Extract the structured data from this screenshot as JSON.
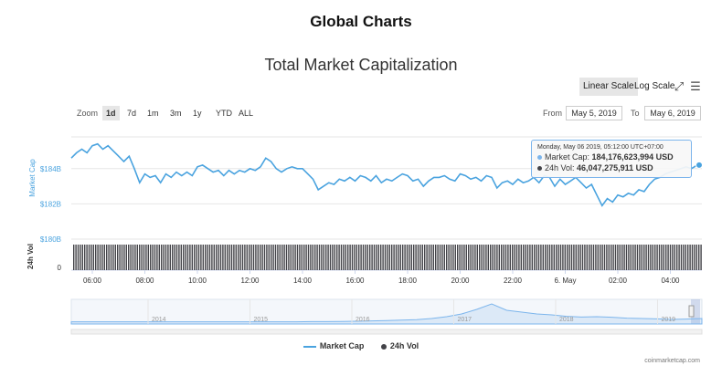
{
  "page_title": "Global Charts",
  "toolbar": {
    "linear_scale": "Linear Scale",
    "log_scale": "Log Scale",
    "zoom_label": "Zoom",
    "zoom_options": [
      "1d",
      "7d",
      "1m",
      "3m",
      "1y",
      "YTD",
      "ALL"
    ],
    "zoom_selected": "1d",
    "from_label": "From",
    "from_value": "May 5, 2019",
    "to_label": "To",
    "to_value": "May 6, 2019"
  },
  "tooltip": {
    "date": "Monday, May 06 2019, 05:12:00 UTC+07:00",
    "market_cap_label": "Market Cap:",
    "market_cap_value": "184,176,623,994 USD",
    "vol_label": "24h Vol:",
    "vol_value": "46,047,275,911 USD"
  },
  "credit": "coinmarketcap.com",
  "chart_data": {
    "type": "line",
    "title": "Total Market Capitalization",
    "ylabel": "Market Cap",
    "y_ticks": [
      "$180B",
      "$182B",
      "$184B"
    ],
    "ylim": [
      180,
      185.8
    ],
    "vol_ylabel": "24h Vol",
    "vol_ticks": [
      "0"
    ],
    "x_ticks": [
      "06:00",
      "08:00",
      "10:00",
      "12:00",
      "14:00",
      "16:00",
      "18:00",
      "20:00",
      "22:00",
      "6. May",
      "02:00",
      "04:00"
    ],
    "x_tick_hours": [
      6,
      8,
      10,
      12,
      14,
      16,
      18,
      20,
      22,
      24,
      26,
      28
    ],
    "x_range_hours": [
      5.2,
      29.2
    ],
    "series": [
      {
        "name": "Market Cap",
        "color": "#4aa3df",
        "x_hours": [
          5.2,
          5.4,
          5.6,
          5.8,
          6.0,
          6.2,
          6.4,
          6.6,
          6.8,
          7.0,
          7.2,
          7.4,
          7.6,
          7.8,
          8.0,
          8.2,
          8.4,
          8.6,
          8.8,
          9.0,
          9.2,
          9.4,
          9.6,
          9.8,
          10.0,
          10.2,
          10.4,
          10.6,
          10.8,
          11.0,
          11.2,
          11.4,
          11.6,
          11.8,
          12.0,
          12.2,
          12.4,
          12.6,
          12.8,
          13.0,
          13.2,
          13.4,
          13.6,
          13.8,
          14.0,
          14.2,
          14.4,
          14.6,
          14.8,
          15.0,
          15.2,
          15.4,
          15.6,
          15.8,
          16.0,
          16.2,
          16.4,
          16.6,
          16.8,
          17.0,
          17.2,
          17.4,
          17.6,
          17.8,
          18.0,
          18.2,
          18.4,
          18.6,
          18.8,
          19.0,
          19.2,
          19.4,
          19.6,
          19.8,
          20.0,
          20.2,
          20.4,
          20.6,
          20.8,
          21.0,
          21.2,
          21.4,
          21.6,
          21.8,
          22.0,
          22.2,
          22.4,
          22.6,
          22.8,
          23.0,
          23.2,
          23.4,
          23.6,
          23.8,
          24.0,
          24.2,
          24.4,
          24.6,
          24.8,
          25.0,
          25.2,
          25.4,
          25.6,
          25.8,
          26.0,
          26.2,
          26.4,
          26.6,
          26.8,
          27.0,
          27.2,
          27.4,
          27.6,
          27.8,
          28.0,
          28.2,
          28.4,
          28.6,
          28.8,
          29.0,
          29.2
        ],
        "values": [
          184.6,
          184.9,
          185.1,
          184.9,
          185.3,
          185.4,
          185.1,
          185.3,
          185.0,
          184.7,
          184.4,
          184.7,
          184.0,
          183.2,
          183.7,
          183.5,
          183.6,
          183.2,
          183.7,
          183.5,
          183.8,
          183.6,
          183.8,
          183.6,
          184.1,
          184.2,
          184.0,
          183.8,
          183.9,
          183.6,
          183.9,
          183.7,
          183.9,
          183.8,
          184.0,
          183.9,
          184.1,
          184.6,
          184.4,
          184.0,
          183.8,
          184.0,
          184.1,
          184.0,
          184.0,
          183.7,
          183.4,
          182.8,
          183.0,
          183.2,
          183.1,
          183.4,
          183.3,
          183.5,
          183.3,
          183.6,
          183.5,
          183.3,
          183.6,
          183.2,
          183.4,
          183.3,
          183.5,
          183.7,
          183.6,
          183.3,
          183.4,
          183.0,
          183.3,
          183.5,
          183.5,
          183.6,
          183.4,
          183.3,
          183.7,
          183.6,
          183.4,
          183.5,
          183.3,
          183.6,
          183.5,
          182.9,
          183.2,
          183.3,
          183.1,
          183.4,
          183.2,
          183.3,
          183.5,
          183.2,
          183.6,
          183.5,
          183.0,
          183.4,
          183.1,
          183.3,
          183.5,
          183.2,
          182.9,
          183.1,
          182.5,
          181.9,
          182.3,
          182.1,
          182.5,
          182.4,
          182.6,
          182.5,
          182.8,
          182.7,
          183.1,
          183.4,
          183.5,
          183.7,
          183.8,
          183.9,
          184.0,
          184.1,
          184.0,
          184.18,
          184.2
        ]
      },
      {
        "name": "24h Vol",
        "color": "#434348"
      }
    ],
    "navigator_years": [
      "2014",
      "2015",
      "2016",
      "2017",
      "2018",
      "2019"
    ],
    "navigator_values": [
      0.02,
      0.02,
      0.02,
      0.02,
      0.02,
      0.02,
      0.02,
      0.02,
      0.02,
      0.02,
      0.02,
      0.02,
      0.02,
      0.02,
      0.02,
      0.02,
      0.03,
      0.03,
      0.04,
      0.05,
      0.07,
      0.09,
      0.11,
      0.14,
      0.2,
      0.3,
      0.45,
      0.7,
      1.0,
      0.65,
      0.55,
      0.45,
      0.4,
      0.32,
      0.28,
      0.3,
      0.27,
      0.22,
      0.2,
      0.18,
      0.15,
      0.17,
      0.2
    ],
    "legend": [
      "Market Cap",
      "24h Vol"
    ],
    "grid": true
  }
}
